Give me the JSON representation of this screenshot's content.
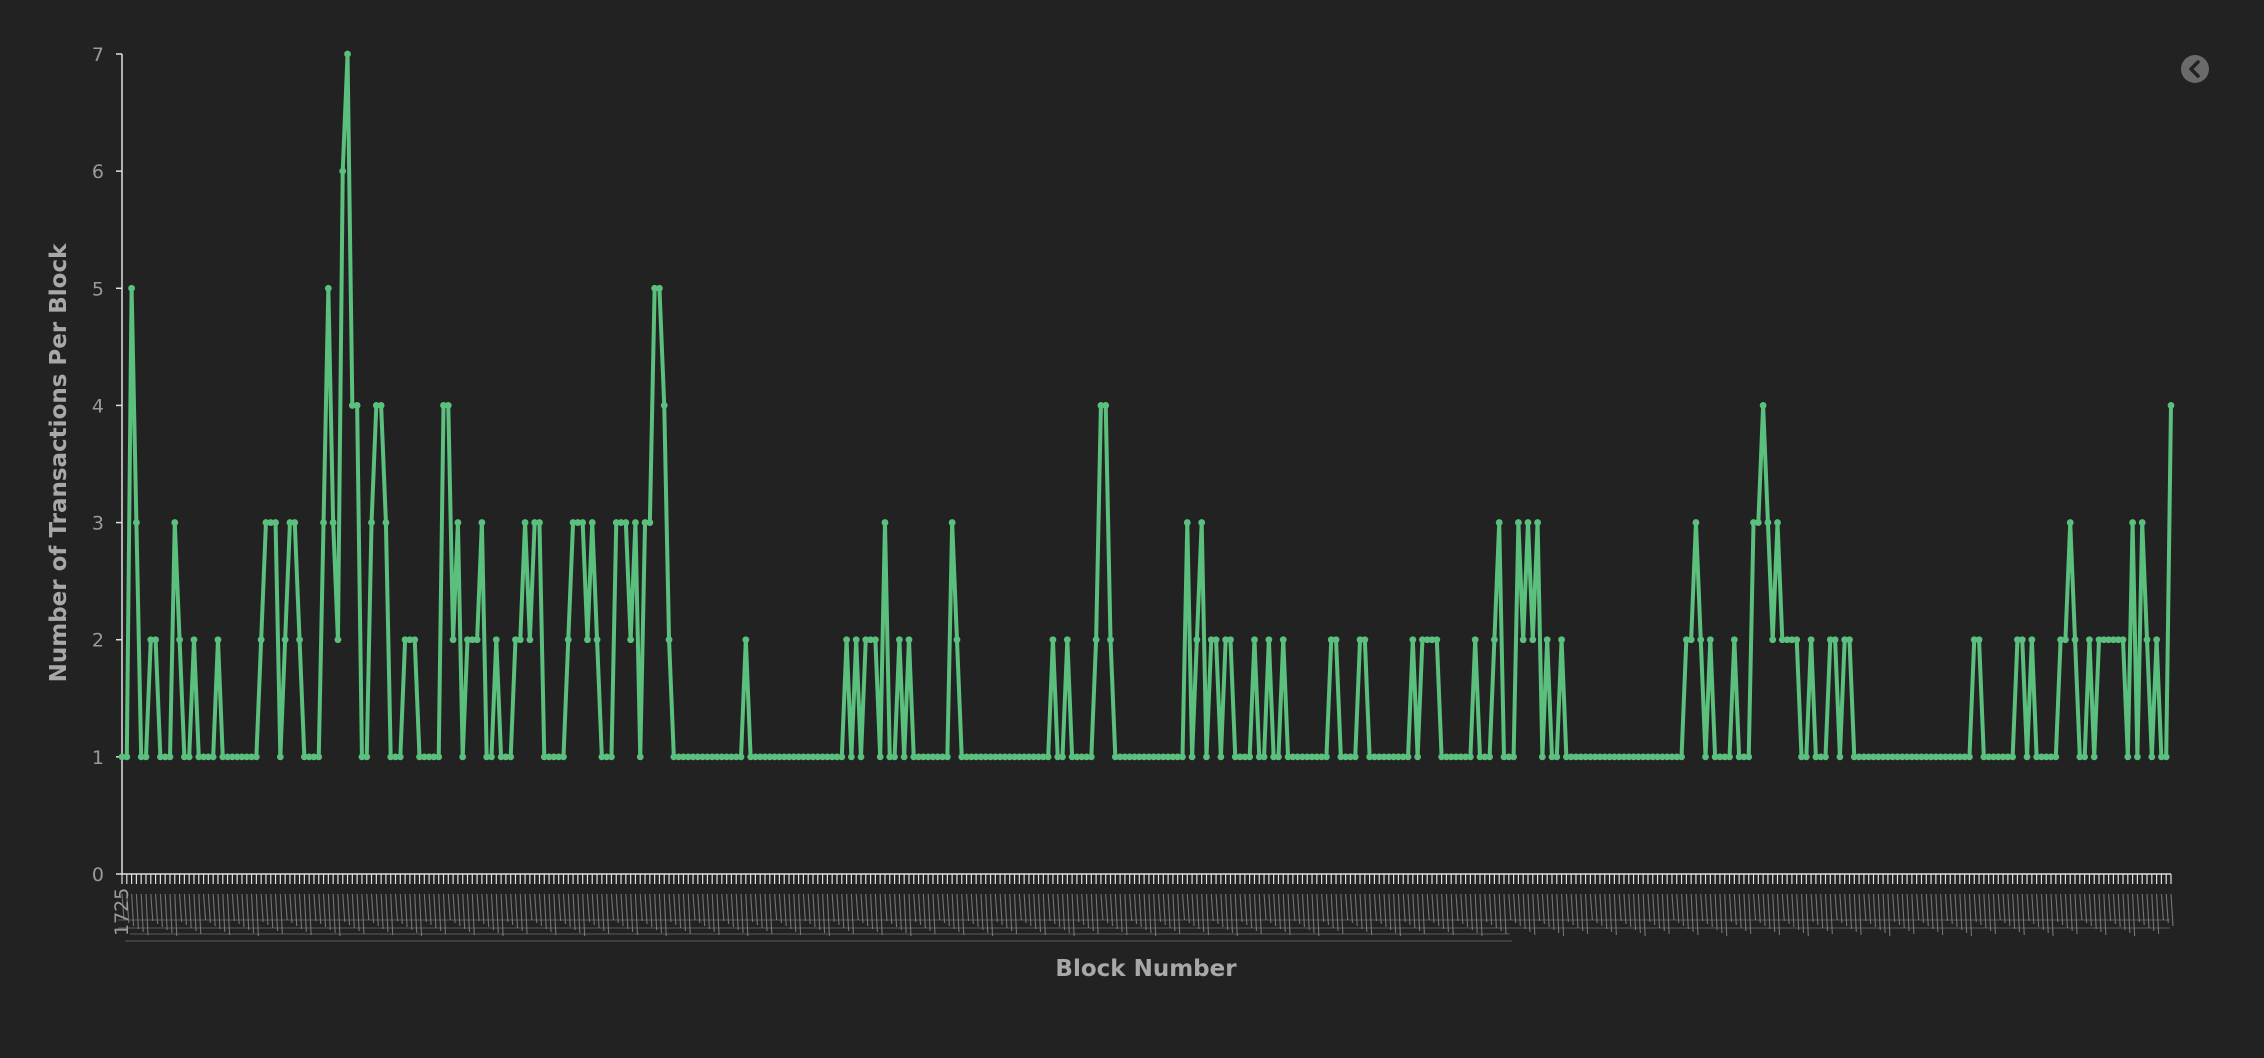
{
  "colors": {
    "background": "#222222",
    "series": "#5bbf7d",
    "axis": "#e0e0e0",
    "tick_text": "#9a9a9a",
    "title_text": "#a8a8a8",
    "button": "#6a6a6a"
  },
  "controls": {
    "back_icon": "chevron-left-icon"
  },
  "chart_data": {
    "type": "line",
    "xlabel": "Block Number",
    "ylabel": "Number of Transactions Per Block",
    "ylim": [
      0,
      7
    ],
    "yticks": [
      "0",
      "1",
      "2",
      "3",
      "4",
      "5",
      "6",
      "7"
    ],
    "x_tick_labels_legible": false,
    "first_x_tick_label_partial": "1725",
    "grid": false,
    "legend": "none",
    "marker": "dot",
    "series": [
      {
        "values": [
          1,
          1,
          5,
          3,
          1,
          1,
          2,
          2,
          1,
          1,
          1,
          3,
          2,
          1,
          1,
          2,
          1,
          1,
          1,
          1,
          2,
          1,
          1,
          1,
          1,
          1,
          1,
          1,
          1,
          2,
          3,
          3,
          3,
          1,
          2,
          3,
          3,
          2,
          1,
          1,
          1,
          1,
          3,
          5,
          3,
          2,
          6,
          7,
          4,
          4,
          1,
          1,
          3,
          4,
          4,
          3,
          1,
          1,
          1,
          2,
          2,
          2,
          1,
          1,
          1,
          1,
          1,
          4,
          4,
          2,
          3,
          1,
          2,
          2,
          2,
          3,
          1,
          1,
          2,
          1,
          1,
          1,
          2,
          2,
          3,
          2,
          3,
          3,
          1,
          1,
          1,
          1,
          1,
          2,
          3,
          3,
          3,
          2,
          3,
          2,
          1,
          1,
          1,
          3,
          3,
          3,
          2,
          3,
          1,
          3,
          3,
          5,
          5,
          4,
          2,
          1,
          1,
          1,
          1,
          1,
          1,
          1,
          1,
          1,
          1,
          1,
          1,
          1,
          1,
          1,
          2,
          1,
          1,
          1,
          1,
          1,
          1,
          1,
          1,
          1,
          1,
          1,
          1,
          1,
          1,
          1,
          1,
          1,
          1,
          1,
          1,
          2,
          1,
          2,
          1,
          2,
          2,
          2,
          1,
          3,
          1,
          1,
          2,
          1,
          2,
          1,
          1,
          1,
          1,
          1,
          1,
          1,
          1,
          3,
          2,
          1,
          1,
          1,
          1,
          1,
          1,
          1,
          1,
          1,
          1,
          1,
          1,
          1,
          1,
          1,
          1,
          1,
          1,
          1,
          2,
          1,
          1,
          2,
          1,
          1,
          1,
          1,
          1,
          2,
          4,
          4,
          2,
          1,
          1,
          1,
          1,
          1,
          1,
          1,
          1,
          1,
          1,
          1,
          1,
          1,
          1,
          1,
          3,
          1,
          2,
          3,
          1,
          2,
          2,
          1,
          2,
          2,
          1,
          1,
          1,
          1,
          2,
          1,
          1,
          2,
          1,
          1,
          2,
          1,
          1,
          1,
          1,
          1,
          1,
          1,
          1,
          1,
          2,
          2,
          1,
          1,
          1,
          1,
          2,
          2,
          1,
          1,
          1,
          1,
          1,
          1,
          1,
          1,
          1,
          2,
          1,
          2,
          2,
          2,
          2,
          1,
          1,
          1,
          1,
          1,
          1,
          1,
          2,
          1,
          1,
          1,
          2,
          3,
          1,
          1,
          1,
          3,
          2,
          3,
          2,
          3,
          1,
          2,
          1,
          1,
          2,
          1,
          1,
          1,
          1,
          1,
          1,
          1,
          1,
          1,
          1,
          1,
          1,
          1,
          1,
          1,
          1,
          1,
          1,
          1,
          1,
          1,
          1,
          1,
          1,
          1,
          2,
          2,
          3,
          2,
          1,
          2,
          1,
          1,
          1,
          1,
          2,
          1,
          1,
          1,
          3,
          3,
          4,
          3,
          2,
          3,
          2,
          2,
          2,
          2,
          1,
          1,
          2,
          1,
          1,
          1,
          2,
          2,
          1,
          2,
          2,
          1,
          1,
          1,
          1,
          1,
          1,
          1,
          1,
          1,
          1,
          1,
          1,
          1,
          1,
          1,
          1,
          1,
          1,
          1,
          1,
          1,
          1,
          1,
          1,
          1,
          2,
          2,
          1,
          1,
          1,
          1,
          1,
          1,
          1,
          2,
          2,
          1,
          2,
          1,
          1,
          1,
          1,
          1,
          2,
          2,
          3,
          2,
          1,
          1,
          2,
          1,
          2,
          2,
          2,
          2,
          2,
          2,
          1,
          3,
          1,
          3,
          2,
          1,
          2,
          1,
          1,
          4
        ]
      }
    ]
  }
}
